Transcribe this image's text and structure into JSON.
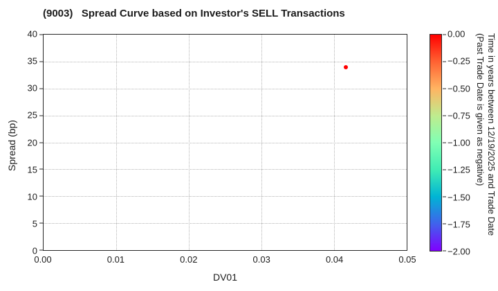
{
  "chart_data": {
    "type": "scatter",
    "title": "(9003)   Spread Curve based on Investor's SELL Transactions",
    "xlabel": "DV01",
    "ylabel": "Spread (bp)",
    "xlim": [
      0.0,
      0.05
    ],
    "ylim": [
      0,
      40
    ],
    "xticks": [
      "0.00",
      "0.01",
      "0.02",
      "0.03",
      "0.04",
      "0.05"
    ],
    "yticks": [
      "0",
      "5",
      "10",
      "15",
      "20",
      "25",
      "30",
      "35",
      "40"
    ],
    "grid": "dotted",
    "points": [
      {
        "x": 0.0416,
        "y": 34,
        "color": "#ff0000",
        "colorbar_value": 0.0
      }
    ],
    "colorbar": {
      "vmax": 0.0,
      "vmin": -2.0,
      "ticks": [
        "0.00",
        "−0.25",
        "−0.50",
        "−0.75",
        "−1.00",
        "−1.25",
        "−1.50",
        "−1.75",
        "−2.00"
      ],
      "label_line1": "Time in years between 12/19/2025 and Trade Date",
      "label_line2": "(Past Trade Date is given as negative)",
      "gradient_top_to_bottom": [
        "#ff0000",
        "#ff6232",
        "#ffb462",
        "#bfec8e",
        "#80ffb4",
        "#40ecb4",
        "#00b4d4",
        "#4062ec",
        "#8000ff"
      ]
    },
    "colors": {
      "point": "#ff0000",
      "grid": "#b3b3b3",
      "axis": "#262626",
      "text": "#1a1a1a"
    }
  }
}
